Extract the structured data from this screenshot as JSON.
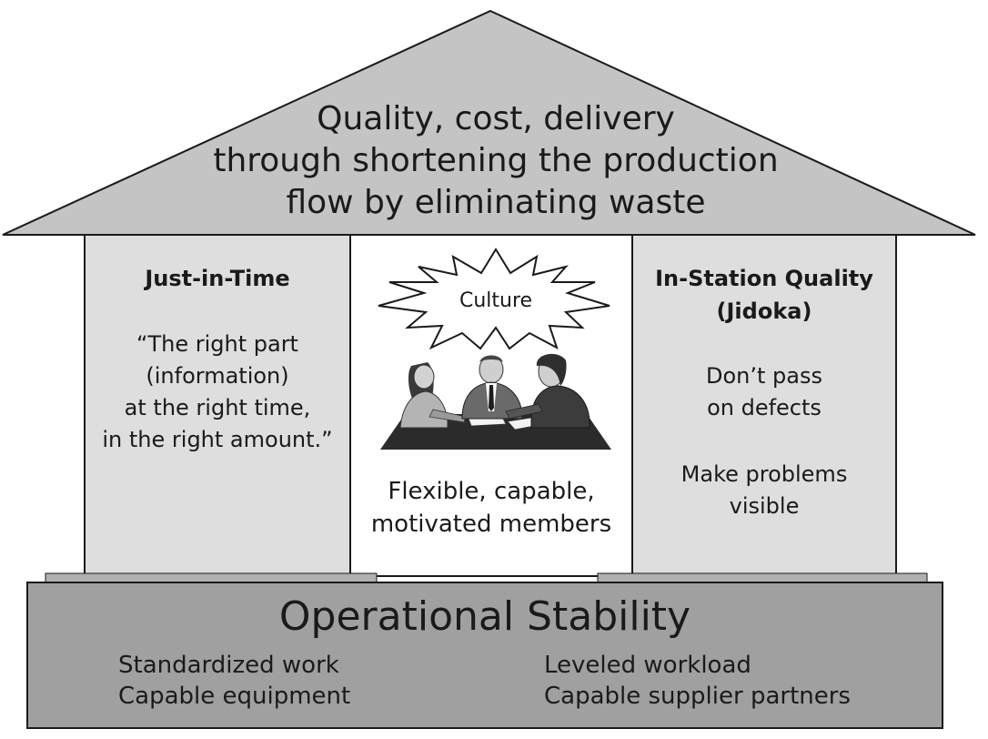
{
  "roof": {
    "title_lines": [
      "Quality, cost, delivery",
      "through shortening the production",
      "flow by eliminating waste"
    ]
  },
  "pillars": {
    "left": {
      "heading": "Just-in-Time",
      "quote_lines": [
        "“The right part",
        "(information)",
        "at the right time,",
        "in the right amount.”"
      ]
    },
    "center": {
      "burst_label": "Culture",
      "caption_lines": [
        "Flexible, capable,",
        "motivated members"
      ]
    },
    "right": {
      "heading_lines": [
        "In-Station Quality",
        "(Jidoka)"
      ],
      "point1_lines": [
        "Don’t pass",
        "on defects"
      ],
      "point2_lines": [
        "Make problems",
        "visible"
      ]
    }
  },
  "foundation": {
    "title": "Operational Stability",
    "left_items": [
      "Standardized work",
      "Capable equipment"
    ],
    "right_items": [
      "Leveled workload",
      "Capable supplier partners"
    ]
  },
  "colors": {
    "roof_fill": "#c4c4c4",
    "pillar_fill": "#dedede",
    "base_fill": "#a0a0a0",
    "ledge_fill": "#b0b0b0",
    "stroke": "#1a1a1a"
  }
}
